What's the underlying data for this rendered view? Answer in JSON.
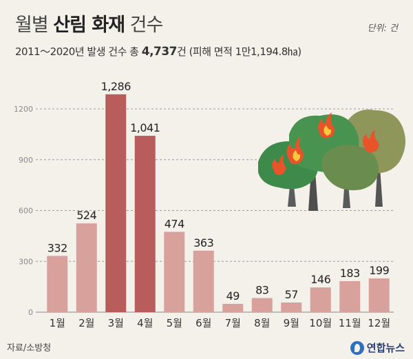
{
  "header": {
    "title_pre": "월별",
    "title_bold": "산림 화재",
    "title_post": "건수",
    "unit": "단위: 건",
    "subtitle_pre": "2011～2020년 발생 건수 총",
    "subtitle_total": "4,737",
    "subtitle_post": "건 (피해 면적 1만1,194.8㏊)"
  },
  "footer": {
    "source": "자료/소방청",
    "logo_text": "연합뉴스"
  },
  "colors": {
    "bar_light": "#d9a19c",
    "bar_dark": "#b85c5c",
    "grid": "#9a9a9a",
    "background": "#f3f1ea"
  },
  "chart_data": {
    "type": "bar",
    "categories": [
      "1월",
      "2월",
      "3월",
      "4월",
      "5월",
      "6월",
      "7월",
      "8월",
      "9월",
      "10월",
      "11월",
      "12월"
    ],
    "values": [
      332,
      524,
      1286,
      1041,
      474,
      363,
      49,
      83,
      57,
      146,
      183,
      199
    ],
    "value_labels": [
      "332",
      "524",
      "1,286",
      "1,041",
      "474",
      "363",
      "49",
      "83",
      "57",
      "146",
      "183",
      "199"
    ],
    "highlight": [
      false,
      false,
      true,
      true,
      false,
      false,
      false,
      false,
      false,
      false,
      false,
      false
    ],
    "yticks": [
      0,
      300,
      600,
      900,
      1200
    ],
    "ylim": [
      0,
      1200
    ],
    "grid": true
  }
}
